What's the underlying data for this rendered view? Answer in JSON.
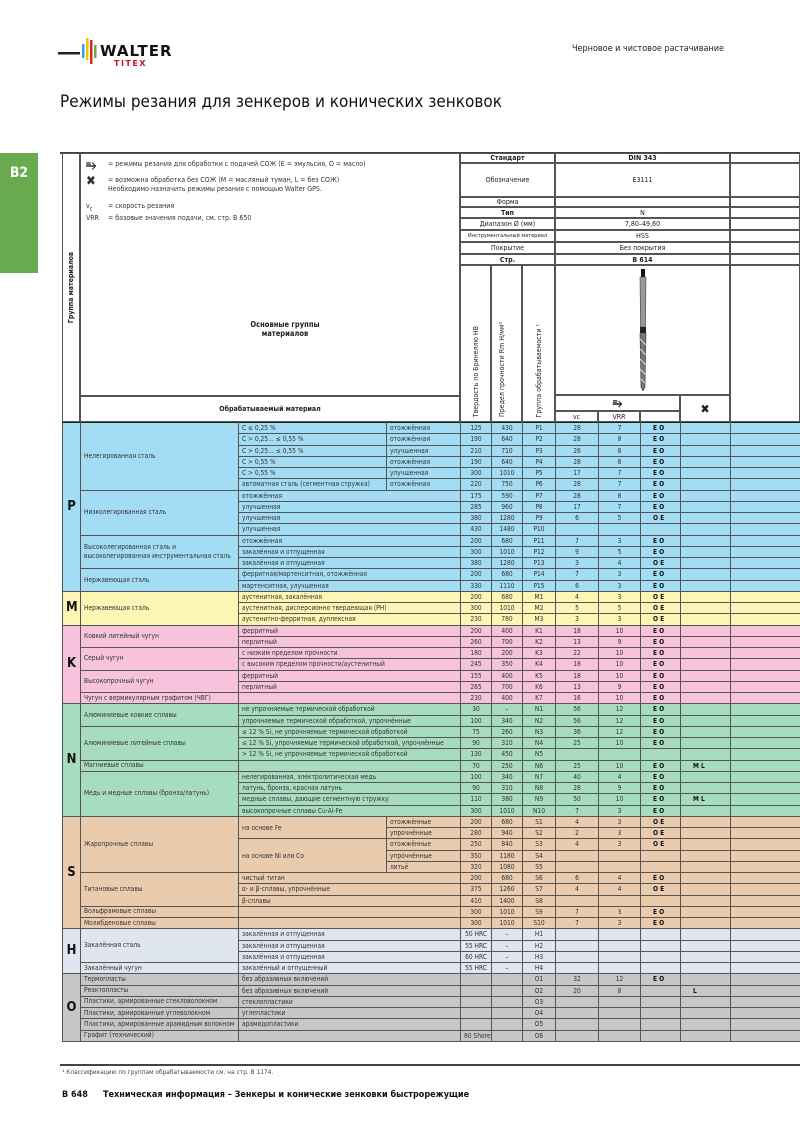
{
  "brand": {
    "logo_text": "WALTER",
    "logo_sub": "TITEX"
  },
  "header": {
    "section": "Черновое и чистовое растачивание",
    "title": "Режимы резания для зенкеров и конических зенковок",
    "tab": "B2"
  },
  "legend": {
    "coolant": "= режимы резания для обработки с подачей СОЖ (E = эмульсия, O = масло)",
    "dry": "= возможна обработка без СОЖ (M = масляный туман, L = без СОЖ)",
    "dry_note": "Необходимо назначить режимы резания с помощью Walter GPS.",
    "vc_key": "v",
    "vc_sub": "c",
    "vc_desc": "= скорость резания",
    "vrr_key": "VRR",
    "vrr_desc": "= базовые значения подачи, см. стр. B 650"
  },
  "table_header": {
    "group_col": "Группа материалов",
    "main_groups": "Основные группы материалов",
    "material": "Обрабатываемый материал",
    "hb": "Твердость по Бринеллю HB",
    "rm": "Предел прочности Rm Н/мм²",
    "machinability": "Группа обрабатываемости ¹",
    "vc": "vc",
    "vrr": "VRR",
    "specs": [
      {
        "label": "Стандарт",
        "value": "DIN 343",
        "bold": true
      },
      {
        "label": "Обозначение",
        "value": "E3111"
      },
      {
        "label": "Форма",
        "value": ""
      },
      {
        "label": "Тип",
        "value": "N",
        "bold_label": true
      },
      {
        "label": "Диапазон Ø (мм)",
        "value": "7,80–49,60"
      },
      {
        "label": "Инструментальный материал",
        "value": "HSS"
      },
      {
        "label": "Покрытие",
        "value": "Без покрытия"
      },
      {
        "label": "Стр.",
        "value": "B 614",
        "bold": true
      }
    ]
  },
  "icons": {
    "coolant": "coolant-tap-icon",
    "dry": "dry-crossed-tap-icon",
    "tool": "countersink-tool-image"
  },
  "groups": [
    {
      "letter": "P",
      "color": "#a3dcf5",
      "rows": [
        {
          "mat": "Нелегированная сталь",
          "sub": "C ≤ 0,25 %",
          "cond": "отожжённая",
          "hb": "125",
          "rm": "430",
          "code": "P1",
          "vc": "28",
          "vrr": "7",
          "cool": "E O",
          "dry": ""
        },
        {
          "sub": "C > 0,25… ≤ 0,55 %",
          "cond": "отожжённая",
          "hb": "190",
          "rm": "640",
          "code": "P2",
          "vc": "28",
          "vrr": "8",
          "cool": "E O",
          "dry": ""
        },
        {
          "sub": "C > 0,25… ≤ 0,55 %",
          "cond": "улучшенная",
          "hb": "210",
          "rm": "710",
          "code": "P3",
          "vc": "26",
          "vrr": "8",
          "cool": "E O",
          "dry": ""
        },
        {
          "sub": "C > 0,55 %",
          "cond": "отожжённая",
          "hb": "190",
          "rm": "640",
          "code": "P4",
          "vc": "28",
          "vrr": "8",
          "cool": "E O",
          "dry": ""
        },
        {
          "sub": "C > 0,55 %",
          "cond": "улучшенная",
          "hb": "300",
          "rm": "1010",
          "code": "P5",
          "vc": "17",
          "vrr": "7",
          "cool": "E O",
          "dry": ""
        },
        {
          "sub": "автоматная сталь (сегментная стружка)",
          "cond": "отожжённая",
          "hb": "220",
          "rm": "750",
          "code": "P6",
          "vc": "28",
          "vrr": "7",
          "cool": "E O",
          "dry": ""
        },
        {
          "mat": "Низколегированная сталь",
          "sub": "отожжённая",
          "hb": "175",
          "rm": "590",
          "code": "P7",
          "vc": "28",
          "vrr": "8",
          "cool": "E O",
          "dry": ""
        },
        {
          "sub": "улучшенная",
          "hb": "285",
          "rm": "960",
          "code": "P8",
          "vc": "17",
          "vrr": "7",
          "cool": "E O",
          "dry": ""
        },
        {
          "sub": "улучшенная",
          "hb": "380",
          "rm": "1280",
          "code": "P9",
          "vc": "6",
          "vrr": "5",
          "cool": "O E",
          "dry": ""
        },
        {
          "sub": "улучшенная",
          "hb": "430",
          "rm": "1480",
          "code": "P10",
          "vc": "",
          "vrr": "",
          "cool": "",
          "dry": ""
        },
        {
          "mat": "Высоколегированная сталь и высоколегированная инструментальная сталь",
          "sub": "отожжённая",
          "hb": "200",
          "rm": "680",
          "code": "P11",
          "vc": "7",
          "vrr": "3",
          "cool": "E O",
          "dry": ""
        },
        {
          "sub": "закалённая и отпущенная",
          "hb": "300",
          "rm": "1010",
          "code": "P12",
          "vc": "9",
          "vrr": "5",
          "cool": "E O",
          "dry": ""
        },
        {
          "sub": "закалённая и отпущенная",
          "hb": "380",
          "rm": "1280",
          "code": "P13",
          "vc": "3",
          "vrr": "4",
          "cool": "O E",
          "dry": ""
        },
        {
          "mat": "Нержавеющая сталь",
          "sub": "ферритная/мартенситная, отожжённая",
          "hb": "200",
          "rm": "680",
          "code": "P14",
          "vc": "7",
          "vrr": "3",
          "cool": "E O",
          "dry": ""
        },
        {
          "sub": "мартенситная, улучшенная",
          "hb": "330",
          "rm": "1110",
          "code": "P15",
          "vc": "6",
          "vrr": "3",
          "cool": "E O",
          "dry": ""
        }
      ]
    },
    {
      "letter": "M",
      "color": "#fcf5b4",
      "rows": [
        {
          "mat": "Нержавеющая сталь",
          "sub": "аустенитная, закалённая",
          "hb": "200",
          "rm": "680",
          "code": "M1",
          "vc": "4",
          "vrr": "3",
          "cool": "O E",
          "dry": ""
        },
        {
          "sub": "аустенитная, дисперсионно твердеющая (PH)",
          "hb": "300",
          "rm": "1010",
          "code": "M2",
          "vc": "5",
          "vrr": "5",
          "cool": "O E",
          "dry": ""
        },
        {
          "sub": "аустенитно-ферритная, дуплексная",
          "hb": "230",
          "rm": "780",
          "code": "M3",
          "vc": "3",
          "vrr": "3",
          "cool": "O E",
          "dry": ""
        }
      ]
    },
    {
      "letter": "K",
      "color": "#f6c2dc",
      "rows": [
        {
          "mat": "Ковкий литейный чугун",
          "sub": "ферритный",
          "hb": "200",
          "rm": "400",
          "code": "K1",
          "vc": "18",
          "vrr": "10",
          "cool": "E O",
          "dry": ""
        },
        {
          "sub": "перлитный",
          "hb": "260",
          "rm": "700",
          "code": "K2",
          "vc": "13",
          "vrr": "9",
          "cool": "E O",
          "dry": ""
        },
        {
          "mat": "Серый чугун",
          "sub": "с низким пределом прочности",
          "hb": "180",
          "rm": "200",
          "code": "K3",
          "vc": "22",
          "vrr": "10",
          "cool": "E O",
          "dry": ""
        },
        {
          "sub": "с высоким пределом прочности/аустенитный",
          "hb": "245",
          "rm": "350",
          "code": "K4",
          "vc": "18",
          "vrr": "10",
          "cool": "E O",
          "dry": ""
        },
        {
          "mat": "Высокопрочный чугун",
          "sub": "ферритный",
          "hb": "155",
          "rm": "400",
          "code": "K5",
          "vc": "18",
          "vrr": "10",
          "cool": "E O",
          "dry": ""
        },
        {
          "sub": "перлитный",
          "hb": "265",
          "rm": "700",
          "code": "K6",
          "vc": "13",
          "vrr": "9",
          "cool": "E O",
          "dry": ""
        },
        {
          "mat": "Чугун с вермикулярным графитом (ЧВГ)",
          "sub": "",
          "hb": "230",
          "rm": "400",
          "code": "K7",
          "vc": "16",
          "vrr": "10",
          "cool": "E O",
          "dry": ""
        }
      ]
    },
    {
      "letter": "N",
      "color": "#a8dcc0",
      "rows": [
        {
          "mat": "Алюминиевые ковкие сплавы",
          "sub": "не упрочняемые термической обработкой",
          "hb": "30",
          "rm": "–",
          "code": "N1",
          "vc": "56",
          "vrr": "12",
          "cool": "E O",
          "dry": ""
        },
        {
          "sub": "упрочняемые термической обработкой, упрочнённые",
          "hb": "100",
          "rm": "340",
          "code": "N2",
          "vc": "56",
          "vrr": "12",
          "cool": "E O",
          "dry": ""
        },
        {
          "mat": "Алюминиевые литейные сплавы",
          "sub": "≤ 12 % Si, не упрочняемые термической обработкой",
          "hb": "75",
          "rm": "260",
          "code": "N3",
          "vc": "36",
          "vrr": "12",
          "cool": "E O",
          "dry": ""
        },
        {
          "sub": "≤ 12 % Si, упрочняемые термической обработкой, упрочнённые",
          "hb": "90",
          "rm": "310",
          "code": "N4",
          "vc": "25",
          "vrr": "10",
          "cool": "E O",
          "dry": ""
        },
        {
          "sub": "> 12 % Si, не упрочняемые термической обработкой",
          "hb": "130",
          "rm": "450",
          "code": "N5",
          "vc": "",
          "vrr": "",
          "cool": "",
          "dry": ""
        },
        {
          "mat": "Магниевые сплавы",
          "sub": "",
          "hb": "70",
          "rm": "250",
          "code": "N6",
          "vc": "25",
          "vrr": "10",
          "cool": "E O",
          "dry": "M L"
        },
        {
          "mat": "Медь и медные сплавы (бронза/латунь)",
          "sub": "нелегированная, электролитическая медь",
          "hb": "100",
          "rm": "340",
          "code": "N7",
          "vc": "40",
          "vrr": "4",
          "cool": "E O",
          "dry": ""
        },
        {
          "sub": "латунь, бронза, красная латунь",
          "hb": "90",
          "rm": "310",
          "code": "N8",
          "vc": "28",
          "vrr": "9",
          "cool": "E O",
          "dry": ""
        },
        {
          "sub": "медные сплавы, дающие сегментную стружку",
          "hb": "110",
          "rm": "380",
          "code": "N9",
          "vc": "50",
          "vrr": "10",
          "cool": "E O",
          "dry": "M L"
        },
        {
          "sub": "высокопрочные сплавы Cu-Al-Fe",
          "hb": "300",
          "rm": "1010",
          "code": "N10",
          "vc": "7",
          "vrr": "3",
          "cool": "E O",
          "dry": ""
        }
      ]
    },
    {
      "letter": "S",
      "color": "#ebcbae",
      "rows": [
        {
          "mat": "Жаропрочные сплавы",
          "sub": "на основе Fe",
          "cond": "отожжённые",
          "hb": "200",
          "rm": "680",
          "code": "S1",
          "vc": "4",
          "vrr": "3",
          "cool": "O E",
          "dry": ""
        },
        {
          "cond": "упрочнённые",
          "hb": "280",
          "rm": "940",
          "code": "S2",
          "vc": "2",
          "vrr": "3",
          "cool": "O E",
          "dry": ""
        },
        {
          "sub": "на основе Ni или Co",
          "cond": "отожжённые",
          "hb": "250",
          "rm": "840",
          "code": "S3",
          "vc": "4",
          "vrr": "3",
          "cool": "O E",
          "dry": ""
        },
        {
          "cond": "упрочнённые",
          "hb": "350",
          "rm": "1180",
          "code": "S4",
          "vc": "",
          "vrr": "",
          "cool": "",
          "dry": ""
        },
        {
          "cond": "литьё",
          "hb": "320",
          "rm": "1080",
          "code": "S5",
          "vc": "",
          "vrr": "",
          "cool": "",
          "dry": ""
        },
        {
          "mat": "Титановые сплавы",
          "sub": "чистый титан",
          "hb": "200",
          "rm": "680",
          "code": "S6",
          "vc": "6",
          "vrr": "4",
          "cool": "E O",
          "dry": ""
        },
        {
          "sub": "α- и β-сплавы, упрочнённые",
          "hb": "375",
          "rm": "1260",
          "code": "S7",
          "vc": "4",
          "vrr": "4",
          "cool": "O E",
          "dry": ""
        },
        {
          "sub": "β-сплавы",
          "hb": "410",
          "rm": "1400",
          "code": "S8",
          "vc": "",
          "vrr": "",
          "cool": "",
          "dry": ""
        },
        {
          "mat": "Вольфрамовые сплавы",
          "sub": "",
          "hb": "300",
          "rm": "1010",
          "code": "S9",
          "vc": "7",
          "vrr": "3",
          "cool": "E O",
          "dry": ""
        },
        {
          "mat": "Молибденовые сплавы",
          "sub": "",
          "hb": "300",
          "rm": "1010",
          "code": "S10",
          "vc": "7",
          "vrr": "3",
          "cool": "E O",
          "dry": ""
        }
      ]
    },
    {
      "letter": "H",
      "color": "#dfe6f0",
      "rows": [
        {
          "mat": "Закалённая сталь",
          "sub": "закалённая и отпущенная",
          "hb": "50 HRC",
          "rm": "–",
          "code": "H1",
          "vc": "",
          "vrr": "",
          "cool": "",
          "dry": ""
        },
        {
          "sub": "закалённая и отпущенная",
          "hb": "55 HRC",
          "rm": "–",
          "code": "H2",
          "vc": "",
          "vrr": "",
          "cool": "",
          "dry": ""
        },
        {
          "sub": "закалённая и отпущенная",
          "hb": "60 HRC",
          "rm": "–",
          "code": "H3",
          "vc": "",
          "vrr": "",
          "cool": "",
          "dry": ""
        },
        {
          "mat": "Закалённый чугун",
          "sub": "закалённый и отпущенный",
          "hb": "55 HRC",
          "rm": "–",
          "code": "H4",
          "vc": "",
          "vrr": "",
          "cool": "",
          "dry": ""
        }
      ]
    },
    {
      "letter": "O",
      "color": "#c7c7c7",
      "rows": [
        {
          "mat": "Термопласты",
          "sub": "без абразивных включений",
          "hb": "",
          "rm": "",
          "code": "O1",
          "vc": "32",
          "vrr": "12",
          "cool": "E O",
          "dry": ""
        },
        {
          "mat": "Реактопласты",
          "sub": "без абразивных включений",
          "hb": "",
          "rm": "",
          "code": "O2",
          "vc": "20",
          "vrr": "8",
          "cool": "",
          "dry": "L"
        },
        {
          "mat": "Пластики, армированные стекловолокном",
          "sub": "стеклопластики",
          "hb": "",
          "rm": "",
          "code": "O3",
          "vc": "",
          "vrr": "",
          "cool": "",
          "dry": ""
        },
        {
          "mat": "Пластики, армированные углеволокном",
          "sub": "углепластики",
          "hb": "",
          "rm": "",
          "code": "O4",
          "vc": "",
          "vrr": "",
          "cool": "",
          "dry": ""
        },
        {
          "mat": "Пластики, армированные арамидным волокном",
          "sub": "арамидопластики",
          "hb": "",
          "rm": "",
          "code": "O5",
          "vc": "",
          "vrr": "",
          "cool": "",
          "dry": ""
        },
        {
          "mat": "Графит (технический)",
          "sub": "",
          "hb": "80 Shore",
          "rm": "",
          "code": "O6",
          "vc": "",
          "vrr": "",
          "cool": "",
          "dry": ""
        }
      ]
    }
  ],
  "footer": {
    "footnote": "¹ Классификацию по группам обрабатываемости см. на стр. B 1174.",
    "page": "B 648",
    "page_title": "Техническая информация – Зенкеры и конические зенковки быстрорежущие"
  }
}
